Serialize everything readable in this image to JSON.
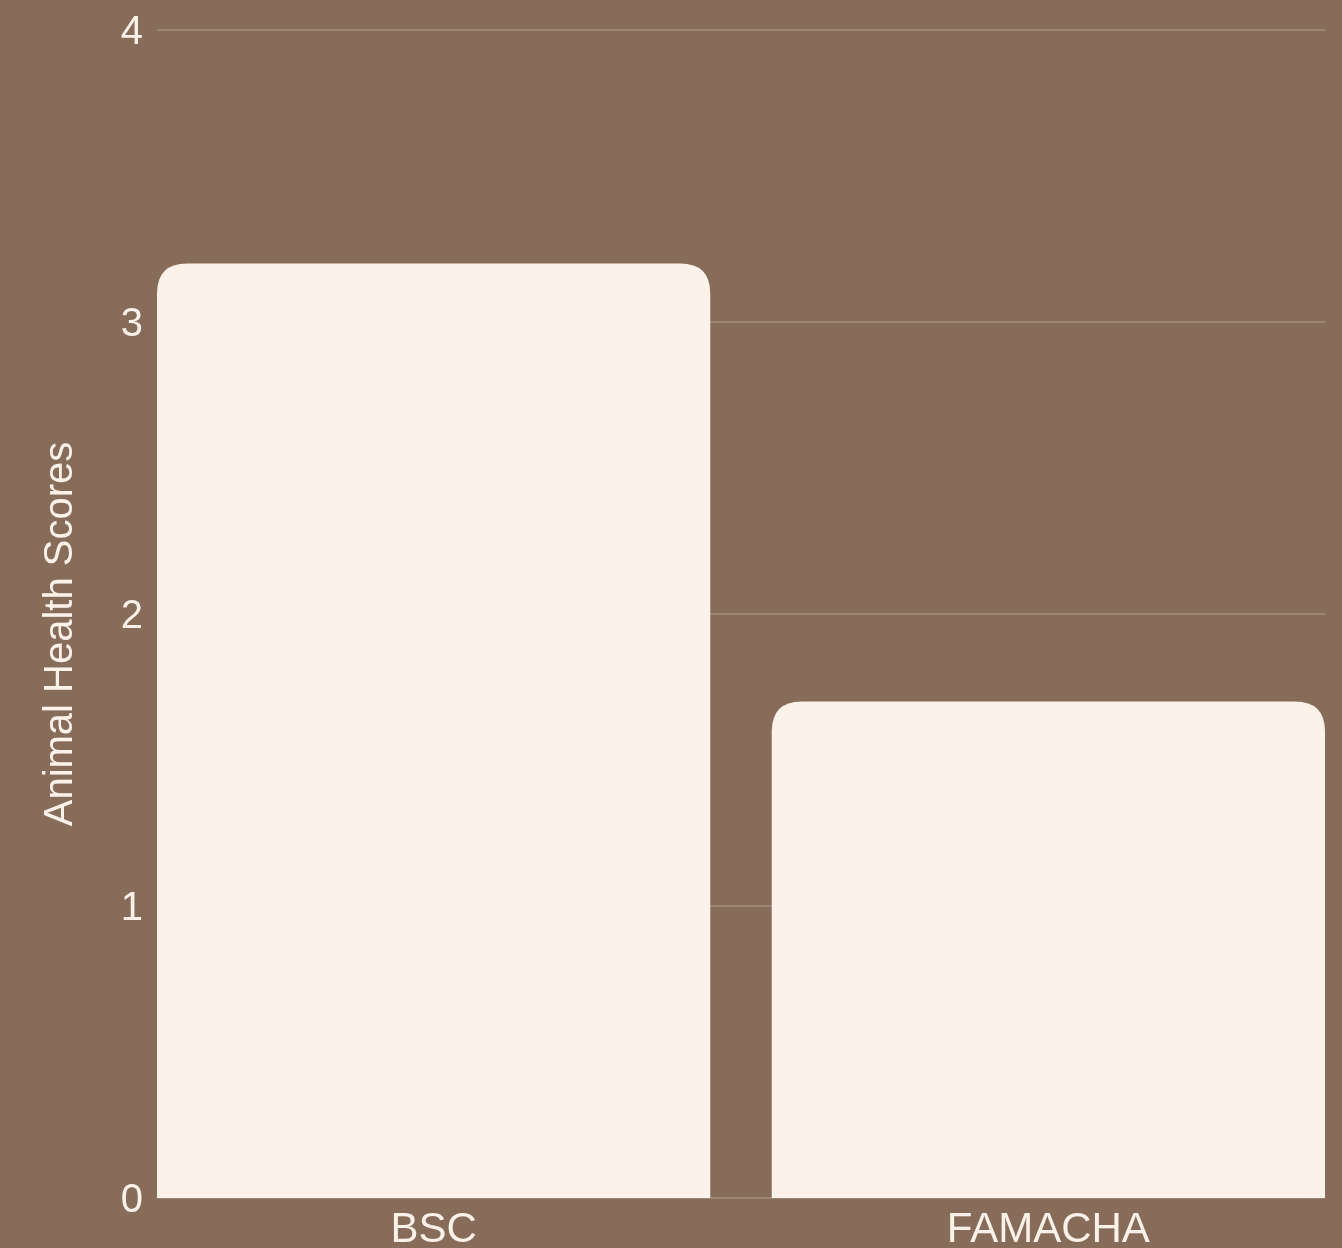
{
  "chart_data": {
    "type": "bar",
    "ylabel": "Animal Health Scores",
    "categories": [
      "BSC",
      "FAMACHA"
    ],
    "values": [
      3.2,
      1.7
    ],
    "color": "#fcf2e9",
    "ylim": [
      0,
      4
    ],
    "yticks": [
      0,
      1,
      2,
      3,
      4
    ],
    "grid": "y"
  }
}
